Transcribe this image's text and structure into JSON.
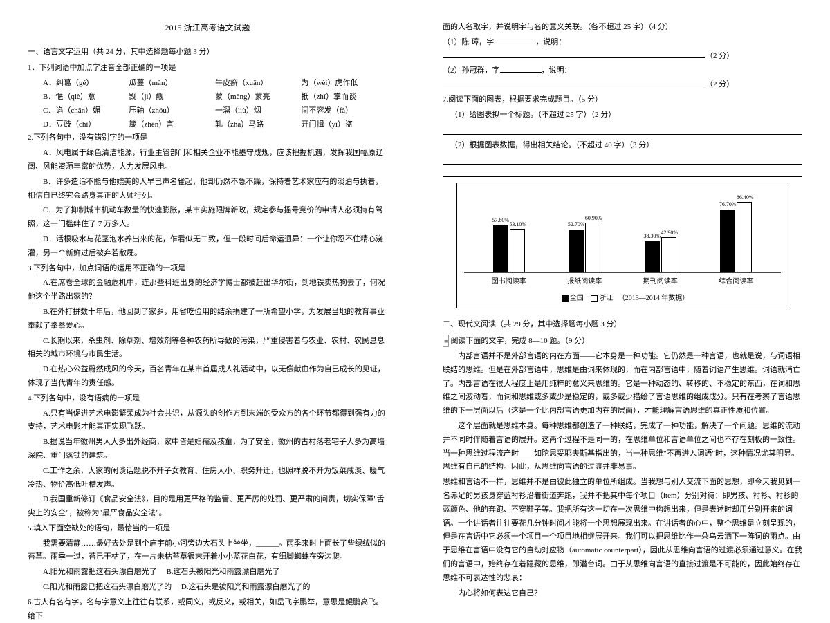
{
  "title": "2015 浙江高考语文试题",
  "left": {
    "h1": "一、语言文字运用（共 24 分，其中选择题每小题 3 分）",
    "q1": "1．下列词语中加点字注音全部正确的一项是",
    "q1rows": [
      [
        "A．纠葛（gé）",
        "瓜蔓（màn）",
        "牛皮癣（xuǎn）",
        "为（wèi）虎作伥"
      ],
      [
        "B．惬（qiè）意",
        "觊（jì）觎",
        "蒙（měng）蒙亮",
        "扺（zhǐ）掌而谈"
      ],
      [
        "C．谄（chǎn）媚",
        "压轴（zhóu）",
        "一溜（liù）烟",
        "间不容发（fà）"
      ],
      [
        "D．豆豉（chǐ）",
        "箴（zhēn）言",
        "轧（zhá）马路",
        "开门揖（yī）盗"
      ]
    ],
    "q2": "2.下列各句中，没有错别字的一项是",
    "q2a": "A．风电属于绿色清洁能源，行业主管部门和相关企业不能墨守成规，应该把握机遇，发挥我国幅原辽阔、风能资源丰富的优势，大力发展风电。",
    "q2b": "B．许多造诣不能与他媲美的人早已声名雀起，他却仍然不急不躁，保持着艺术家应有的淡泊与执着，相信自已终究会路身真正的大师行列。",
    "q2c": "C．为了抑制城市机动车数量的快速膨胀，某市实施限牌新政，规定参与摇号竞价的申请人必须持有驾照，这一门槛绊住了 7 万多人。",
    "q2d": "D．活根吸水与花茎泡水养出来的花，乍看似无二致，但一段时间后命运迥异：一个让你忍不住精心浇灌，另一个新鲜过后被弃若敝屣。",
    "q3": "3.下列各句中，加点词语的运用不正确的一项是",
    "q3a": "A.在席卷全球的金融危机中，连那些科班出身的经济学博士都被赶出华尔街，到地铁卖热狗去了，何况他这个半路出家的？",
    "q3b": "B.在外打拼数十年后，他回到了家乡，用省吃俭用的结余捐建了一所希望小学，为发展当地的教育事业奉献了拳拳爱心。",
    "q3c": "C.长期以来，杀虫剂、除草剂、增效剂等各种农药所导致的污染，严重侵害着与农业、农村、农民息息相关的城市环境与市民生活。",
    "q3d": "D.在热心公益蔚然成风的今天，百名青年在某市首届成人礼活动中，以无偿献血作为自已成长的见证，体现了当代青年的责任感。",
    "q4": "4.下列各句中，没有语病的一项是",
    "q4a": "A.只有当促进艺术电影繁荣成为社会共识，从源头的创作方到末端的受众方的各个环节都得到强有力的支持，艺术电影才能真正实现飞跃。",
    "q4b": "B.据说当年徽州男人大多出外经商，家中皆是妇孺及孩童，为了安全，徽州的古村落老宅子大多为高墙深院、重门落锁的建筑。",
    "q4c": "C.工作之余，大家的闲谈话题脱不开子女教育、住房大小、职务升迁，也照样脱不开为饭菜咸淡、暖气冷热、物价高低吐槽发声。",
    "q4d": "D.我国重新修订《食品安全法》，目的是用更严格的监管、更严厉的处罚、更严肃的问责，切实保障\"舌尖上的安全\"，被称为\"最严食品安全法\"。",
    "q5": "5.填入下面空缺处的语句，最恰当的一项是",
    "q5p": "我需要清静……最好去处是到个庙宇前小河旁边大石头上坐坐，______。雨季来时上面长了些绿绒似的苔草。雨季一过，苔已干枯了，在一片未枯苔草很末开着小小蓝花白花，有细脚蜘蛛在旁边爬。",
    "q5a": "A.阳光和雨露把这石头漂白磨光了",
    "q5b": "B.这石头被阳光和雨露漂白磨光了",
    "q5c": "C.阳光和雨露已把这石头漂白磨光了的",
    "q5d": "D.这石头是被阳光和雨露漂白磨光了的",
    "q6": "6.古人有名有字。名与字意义上往往有联系，或同义，或反义，或相关，如岳飞字鹏举，意思是鲲鹏高飞。给下"
  },
  "right": {
    "p0": "面的人名取字，并说明字与名的意义关联。（各不超过 25 字）（4 分）",
    "p1a": "（1）陈  璋，字",
    "p1b": "，说明：",
    "p1c": "（2 分）",
    "p2a": "（2）孙冠群，字",
    "p2b": "，说明：",
    "p2c": "（2 分）",
    "q7": "7.阅读下面的图表，根据要求完成题目。（5 分）",
    "q7a": "（1）给图表拟一个标题。（不超过 25 字）（2 分）",
    "q7b": "（2）根据图表数据，得出相关结论。（不超过 40 字）（3 分）",
    "chart": {
      "type": "bar",
      "categories": [
        "图书阅读率",
        "报纸阅读率",
        "期刊阅读率",
        "综合阅读率"
      ],
      "series": [
        {
          "name": "全国",
          "color": "#000000",
          "values": [
            57.8,
            52.7,
            38.3,
            76.7
          ]
        },
        {
          "name": "浙江",
          "color": "#ffffff",
          "border": "#000000",
          "values": [
            53.1,
            60.9,
            42.9,
            86.4
          ]
        }
      ],
      "ylim": [
        0,
        100
      ],
      "value_labels": [
        [
          "57.80%",
          "53.10%"
        ],
        [
          "52.70%",
          "60.90%"
        ],
        [
          "38.30%",
          "42.90%"
        ],
        [
          "76.70%",
          "86.40%"
        ]
      ],
      "legend_note": "（2013—2014 年数据）",
      "background_color": "#ffffff",
      "label_fontsize": 8
    },
    "h2": "二、现代文阅读（共 29 分，其中选择题每小题 3 分）",
    "lead": "阅读下面的文字，完成 8—10 题。（9 分）",
    "body": [
      "内部言语并不是外部言语的内在方面——它本身是一种功能。它仍然是一种言语，也就是说，与词语相联结的思维。但是在外部言语中，思维是由词来体现的，而在内部言语中，随着词语产生思维。词语就消亡了。内部言语在很大程度上是用纯粹的意义来思维的。它是一种动态的、转移的、不稳定的东西，在词和思维之间波动着，而词和思维或多或少是稳定的，或多或少描绘了言语思维的组成成分。只有在考察了言语思维的下一层面以后（这是一个比内部言语更加内在的层面），才能理解言语思维的真正性质和位置。",
      "这个层面就是思维本身。每种思维都创造了一种联结，完成了一种功能，解决了一个问题。思维的流动并不同时伴随着言语的展开。这两个过程不是同一的，在思维单位和言语单位之间也不存在刻板的一致性。当一种思维过程流产时——如陀思妥耶夫斯基指出的，当一种思维\"不再进入词语\"时，这种情况尤其明显。思维有自已的结构。因此，从思维向言语的过渡并非易事。",
      "思维和言语不一样，思维并不是由彼此独立的单位所组成。当我想与别人交流下面的思想，即今天我见到一名赤足的男孩身穿蓝衬衫沿着街道奔跑，我并不把其中每个项目（item）分别对待：即男孩、衬衫、衬衫的蓝颜色、他的奔跑、不穿鞋子等。我把所有这一切在一次思维中构想出来，但是表述时却用分别开来的词语。一个讲话者往往要花几分钟时间才能将一个思想展现出来。在讲话者的心中，整个思维是立刻呈现的，但是在言语中它必须一个项目一个项目地相继展开来。我们可以把思维比作一朵乌云洒下一阵词的雨点。由于思维在言语中没有它的自动对应物（automatic counterpart），因此从思维向言语的过渡必须通过意义。在我们的言语中，始终存在着隐藏的思维，即潜台词。由于从思维向言语的直接过渡是不可能的，因此始终存在思维不可表达性的悲哀：",
      "内心将如何表达它自己？"
    ]
  }
}
